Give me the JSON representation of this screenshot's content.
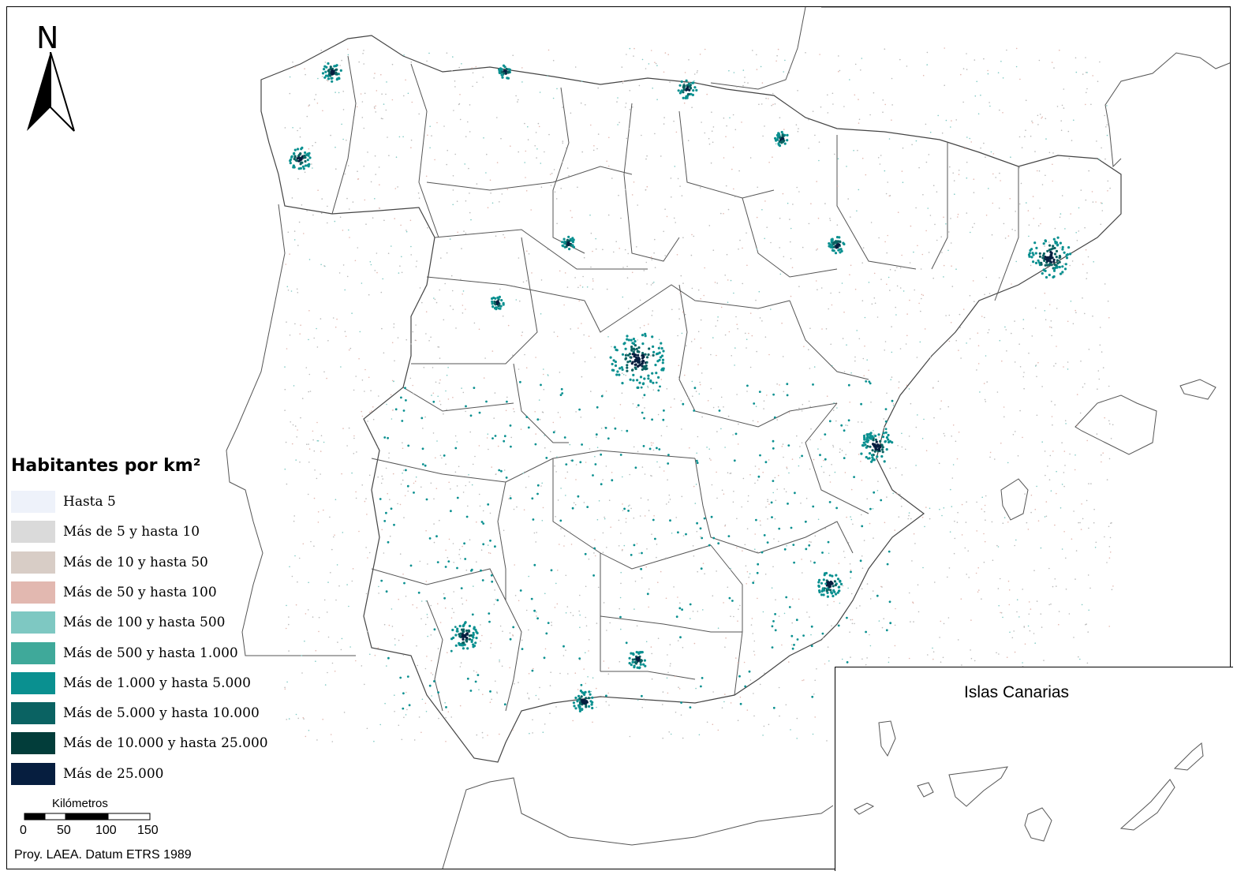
{
  "map": {
    "legend_title": "Habitantes por km²",
    "legend": [
      {
        "label": "Hasta 5",
        "color": "#eef2fa"
      },
      {
        "label": "Más de 5 y hasta 10",
        "color": "#dadada"
      },
      {
        "label": "Más de 10 y hasta 50",
        "color": "#d8cdc6"
      },
      {
        "label": "Más de 50 y hasta 100",
        "color": "#e2b8b0"
      },
      {
        "label": "Más de 100 y hasta 500",
        "color": "#7ec8c2"
      },
      {
        "label": "Más de 500 y hasta 1.000",
        "color": "#3fa99a"
      },
      {
        "label": "Más de 1.000 y hasta 5.000",
        "color": "#0a9090"
      },
      {
        "label": "Más de 5.000 y hasta 10.000",
        "color": "#0a6262"
      },
      {
        "label": "Más de 10.000 y hasta 25.000",
        "color": "#023d3a"
      },
      {
        "label": "Más de 25.000",
        "color": "#061e3f"
      }
    ],
    "north_label": "N",
    "scale": {
      "title": "Kilómetros",
      "ticks": [
        "0",
        "50",
        "100",
        "150"
      ]
    },
    "projection_note": "Proy. LAEA. Datum ETRS 1989",
    "inset_title": "Islas Canarias"
  }
}
